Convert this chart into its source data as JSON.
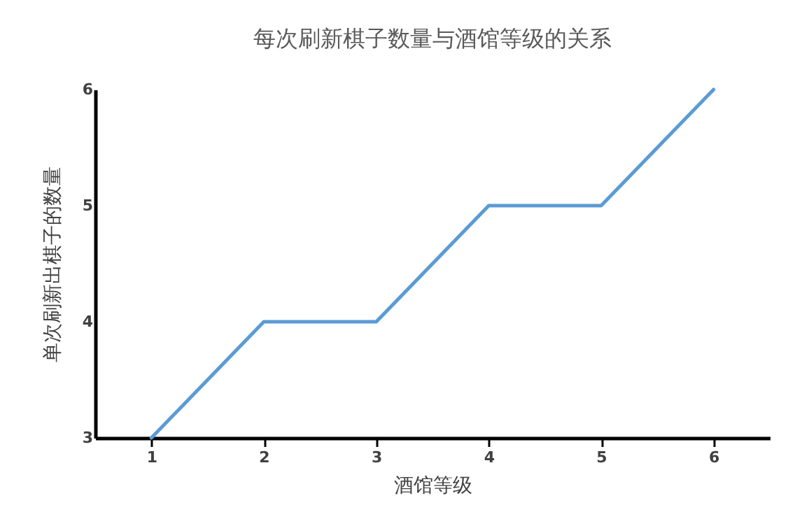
{
  "chart_data": {
    "type": "line",
    "title": "每次刷新棋子数量与酒馆等级的关系",
    "xlabel": "酒馆等级",
    "ylabel": "单次刷新出棋子的数量",
    "categories": [
      "1",
      "2",
      "3",
      "4",
      "5",
      "6"
    ],
    "series": [
      {
        "color": "#5b9bd5",
        "values": [
          3,
          4,
          4,
          5,
          5,
          6
        ]
      }
    ],
    "ylim": [
      3,
      6
    ],
    "yticks": [
      3,
      4,
      5,
      6
    ],
    "grid": false,
    "legend": false,
    "marker": "none",
    "line_style": "solid"
  }
}
